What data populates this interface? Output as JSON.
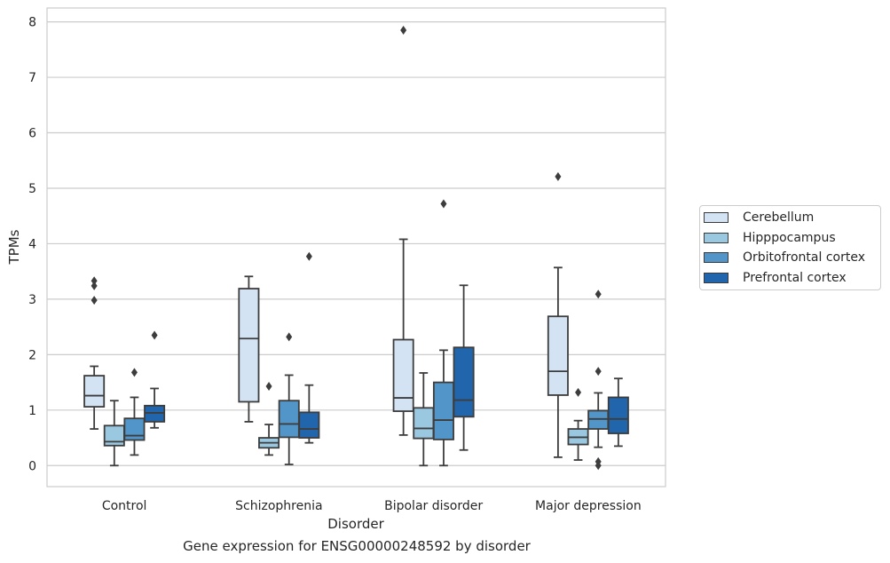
{
  "chart_data": {
    "type": "box",
    "xlabel": "Disorder",
    "ylabel": "TPMs",
    "caption": "Gene expression for ENSG00000248592 by disorder",
    "ylim": [
      -0.38,
      8.25
    ],
    "yticks": [
      "0",
      "1",
      "2",
      "3",
      "4",
      "5",
      "6",
      "7",
      "8"
    ],
    "categories": [
      "Control",
      "Schizophrenia",
      "Bipolar disorder",
      "Major depression"
    ],
    "grid": "horizontal",
    "legend_position": "right",
    "series": [
      {
        "name": "Cerebellum",
        "color": "#d3e3f3",
        "boxes": [
          {
            "whisker_low": 0.66,
            "q1": 1.06,
            "median": 1.26,
            "q3": 1.62,
            "whisker_high": 1.79,
            "outliers": [
              2.98,
              3.24,
              3.33
            ]
          },
          {
            "whisker_low": 0.79,
            "q1": 1.15,
            "median": 2.29,
            "q3": 3.19,
            "whisker_high": 3.41,
            "outliers": []
          },
          {
            "whisker_low": 0.55,
            "q1": 0.98,
            "median": 1.22,
            "q3": 2.27,
            "whisker_high": 4.08,
            "outliers": [
              7.85
            ]
          },
          {
            "whisker_low": 0.15,
            "q1": 1.27,
            "median": 1.7,
            "q3": 2.69,
            "whisker_high": 3.57,
            "outliers": [
              5.21
            ]
          }
        ]
      },
      {
        "name": "Hipppocampus",
        "color": "#9ac8e0",
        "boxes": [
          {
            "whisker_low": 0.0,
            "q1": 0.36,
            "median": 0.43,
            "q3": 0.72,
            "whisker_high": 1.17,
            "outliers": []
          },
          {
            "whisker_low": 0.19,
            "q1": 0.32,
            "median": 0.41,
            "q3": 0.5,
            "whisker_high": 0.74,
            "outliers": [
              1.43
            ]
          },
          {
            "whisker_low": 0.0,
            "q1": 0.49,
            "median": 0.67,
            "q3": 1.04,
            "whisker_high": 1.67,
            "outliers": []
          },
          {
            "whisker_low": 0.1,
            "q1": 0.38,
            "median": 0.51,
            "q3": 0.66,
            "whisker_high": 0.81,
            "outliers": [
              1.32
            ]
          }
        ]
      },
      {
        "name": "Orbitofrontal cortex",
        "color": "#5296c9",
        "boxes": [
          {
            "whisker_low": 0.19,
            "q1": 0.46,
            "median": 0.54,
            "q3": 0.85,
            "whisker_high": 1.23,
            "outliers": [
              1.68
            ]
          },
          {
            "whisker_low": 0.02,
            "q1": 0.51,
            "median": 0.75,
            "q3": 1.17,
            "whisker_high": 1.63,
            "outliers": [
              2.32
            ]
          },
          {
            "whisker_low": 0.0,
            "q1": 0.47,
            "median": 0.82,
            "q3": 1.5,
            "whisker_high": 2.08,
            "outliers": [
              4.72
            ]
          },
          {
            "whisker_low": 0.33,
            "q1": 0.66,
            "median": 0.84,
            "q3": 0.99,
            "whisker_high": 1.31,
            "outliers": [
              0.0,
              0.07,
              1.7,
              3.09
            ]
          }
        ]
      },
      {
        "name": "Prefrontal cortex",
        "color": "#2166ac",
        "boxes": [
          {
            "whisker_low": 0.68,
            "q1": 0.79,
            "median": 0.95,
            "q3": 1.08,
            "whisker_high": 1.39,
            "outliers": [
              2.35
            ]
          },
          {
            "whisker_low": 0.41,
            "q1": 0.5,
            "median": 0.66,
            "q3": 0.96,
            "whisker_high": 1.45,
            "outliers": [
              3.77
            ]
          },
          {
            "whisker_low": 0.28,
            "q1": 0.88,
            "median": 1.18,
            "q3": 2.13,
            "whisker_high": 3.25,
            "outliers": []
          },
          {
            "whisker_low": 0.35,
            "q1": 0.58,
            "median": 0.84,
            "q3": 1.23,
            "whisker_high": 1.57,
            "outliers": []
          }
        ]
      }
    ]
  }
}
